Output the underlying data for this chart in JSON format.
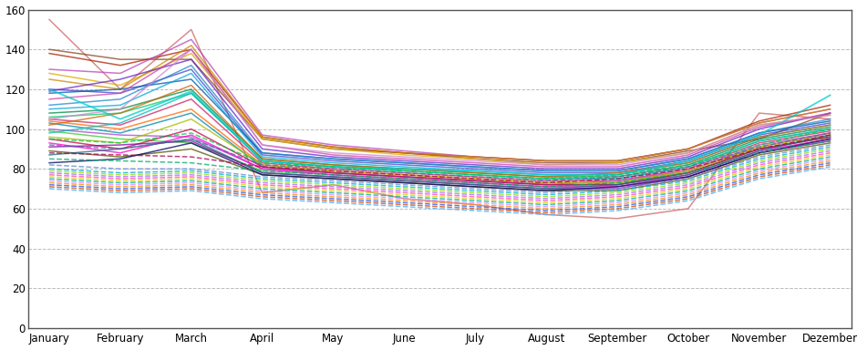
{
  "months": [
    "January",
    "February",
    "March",
    "April",
    "May",
    "June",
    "July",
    "August",
    "September",
    "October",
    "November",
    "Dezember"
  ],
  "ylim": [
    0,
    160
  ],
  "yticks": [
    0,
    20,
    40,
    60,
    80,
    100,
    120,
    140,
    160
  ],
  "background_color": "#ffffff",
  "grid_color": "#bbbbbb",
  "series": [
    {
      "values": [
        155,
        120,
        150,
        68,
        72,
        65,
        62,
        57,
        55,
        60,
        108,
        105
      ],
      "color": "#cc6666",
      "dash": "solid",
      "lw": 1.1
    },
    {
      "values": [
        140,
        135,
        135,
        95,
        90,
        88,
        85,
        83,
        83,
        89,
        95,
        108
      ],
      "color": "#884422",
      "dash": "solid",
      "lw": 1.1
    },
    {
      "values": [
        138,
        132,
        140,
        96,
        91,
        88,
        86,
        84,
        84,
        90,
        104,
        112
      ],
      "color": "#aa2200",
      "dash": "solid",
      "lw": 1.1
    },
    {
      "values": [
        130,
        128,
        145,
        97,
        92,
        89,
        86,
        84,
        84,
        90,
        103,
        110
      ],
      "color": "#bb44bb",
      "dash": "solid",
      "lw": 1.1
    },
    {
      "values": [
        128,
        122,
        138,
        95,
        90,
        87,
        85,
        82,
        83,
        88,
        102,
        107
      ],
      "color": "#ddaa00",
      "dash": "solid",
      "lw": 1.1
    },
    {
      "values": [
        125,
        120,
        142,
        96,
        91,
        88,
        86,
        84,
        84,
        90,
        103,
        110
      ],
      "color": "#cc8800",
      "dash": "solid",
      "lw": 1.1
    },
    {
      "values": [
        120,
        118,
        130,
        87,
        84,
        82,
        80,
        78,
        78,
        84,
        97,
        103
      ],
      "color": "#4444cc",
      "dash": "solid",
      "lw": 1.1
    },
    {
      "values": [
        119,
        125,
        135,
        90,
        86,
        84,
        82,
        80,
        80,
        86,
        100,
        108
      ],
      "color": "#6622cc",
      "dash": "solid",
      "lw": 1.1
    },
    {
      "values": [
        118,
        120,
        125,
        88,
        85,
        83,
        81,
        79,
        79,
        85,
        98,
        104
      ],
      "color": "#0055aa",
      "dash": "solid",
      "lw": 1.1
    },
    {
      "values": [
        115,
        118,
        140,
        92,
        87,
        85,
        83,
        81,
        81,
        87,
        101,
        108
      ],
      "color": "#cc44aa",
      "dash": "solid",
      "lw": 1.1
    },
    {
      "values": [
        112,
        115,
        132,
        88,
        85,
        83,
        81,
        79,
        79,
        85,
        98,
        105
      ],
      "color": "#2288cc",
      "dash": "solid",
      "lw": 1.1
    },
    {
      "values": [
        110,
        112,
        128,
        86,
        83,
        81,
        79,
        77,
        77,
        83,
        96,
        102
      ],
      "color": "#00aadd",
      "dash": "solid",
      "lw": 1.1
    },
    {
      "values": [
        108,
        110,
        120,
        85,
        82,
        80,
        78,
        76,
        76,
        82,
        95,
        101
      ],
      "color": "#008844",
      "dash": "solid",
      "lw": 1.1
    },
    {
      "values": [
        106,
        108,
        118,
        84,
        81,
        79,
        77,
        75,
        75,
        81,
        94,
        100
      ],
      "color": "#00cc66",
      "dash": "solid",
      "lw": 1.1
    },
    {
      "values": [
        105,
        102,
        115,
        83,
        80,
        78,
        76,
        74,
        74,
        80,
        93,
        99
      ],
      "color": "#cc2266",
      "dash": "solid",
      "lw": 1.1
    },
    {
      "values": [
        104,
        100,
        110,
        82,
        79,
        77,
        75,
        73,
        73,
        79,
        91,
        98
      ],
      "color": "#ff6600",
      "dash": "solid",
      "lw": 1.1
    },
    {
      "values": [
        103,
        98,
        108,
        81,
        78,
        76,
        74,
        72,
        72,
        78,
        90,
        96
      ],
      "color": "#0088aa",
      "dash": "solid",
      "lw": 1.1
    },
    {
      "values": [
        102,
        108,
        122,
        85,
        82,
        80,
        78,
        76,
        78,
        83,
        96,
        102
      ],
      "color": "#cc6600",
      "dash": "solid",
      "lw": 1.1
    },
    {
      "values": [
        100,
        97,
        96,
        80,
        78,
        76,
        74,
        72,
        74,
        79,
        92,
        98
      ],
      "color": "#aa44cc",
      "dash": "solid",
      "lw": 1.1
    },
    {
      "values": [
        99,
        95,
        93,
        79,
        77,
        75,
        73,
        71,
        73,
        78,
        90,
        96
      ],
      "color": "#33cc33",
      "dash": "solid",
      "lw": 1.1
    },
    {
      "values": [
        98,
        103,
        118,
        84,
        81,
        79,
        77,
        75,
        75,
        81,
        94,
        100
      ],
      "color": "#00bbbb",
      "dash": "solid",
      "lw": 1.1
    },
    {
      "values": [
        96,
        93,
        105,
        82,
        79,
        77,
        75,
        73,
        73,
        79,
        91,
        97
      ],
      "color": "#aabb00",
      "dash": "solid",
      "lw": 1.1
    },
    {
      "values": [
        95,
        90,
        100,
        81,
        78,
        76,
        74,
        72,
        72,
        78,
        90,
        96
      ],
      "color": "#cc0044",
      "dash": "solid",
      "lw": 1.1
    },
    {
      "values": [
        93,
        88,
        97,
        80,
        77,
        75,
        73,
        71,
        71,
        77,
        89,
        95
      ],
      "color": "#ff00cc",
      "dash": "solid",
      "lw": 1.1
    },
    {
      "values": [
        91,
        92,
        94,
        78,
        76,
        74,
        72,
        70,
        70,
        76,
        88,
        94
      ],
      "color": "#8800aa",
      "dash": "solid",
      "lw": 1.1
    },
    {
      "values": [
        89,
        86,
        90,
        77,
        75,
        73,
        71,
        69,
        69,
        75,
        87,
        93
      ],
      "color": "#555500",
      "dash": "solid",
      "lw": 1.1
    },
    {
      "values": [
        120,
        105,
        119,
        84,
        81,
        80,
        79,
        77,
        77,
        84,
        97,
        117
      ],
      "color": "#00cccc",
      "dash": "solid",
      "lw": 1.3
    },
    {
      "values": [
        105,
        110,
        140,
        92,
        88,
        86,
        84,
        82,
        82,
        88,
        102,
        107
      ],
      "color": "#cc88cc",
      "dash": "solid",
      "lw": 1.1
    },
    {
      "values": [
        87,
        90,
        95,
        78,
        76,
        74,
        72,
        70,
        72,
        77,
        89,
        97
      ],
      "color": "#226688",
      "dash": "solid",
      "lw": 1.1
    },
    {
      "values": [
        83,
        85,
        93,
        77,
        75,
        73,
        71,
        69,
        71,
        76,
        88,
        95
      ],
      "color": "#000066",
      "dash": "solid",
      "lw": 1.1
    },
    {
      "values": [
        82,
        80,
        80,
        76,
        74,
        72,
        70,
        68,
        70,
        75,
        86,
        92
      ],
      "color": "#6688cc",
      "dash": "dashed",
      "lw": 1.1
    },
    {
      "values": [
        80,
        78,
        79,
        75,
        73,
        71,
        69,
        67,
        69,
        74,
        85,
        91
      ],
      "color": "#00aacc",
      "dash": "dashed",
      "lw": 1.1
    },
    {
      "values": [
        79,
        77,
        78,
        74,
        72,
        70,
        68,
        66,
        68,
        73,
        84,
        90
      ],
      "color": "#88dd00",
      "dash": "dashed",
      "lw": 1.1
    },
    {
      "values": [
        78,
        76,
        77,
        73,
        71,
        69,
        67,
        65,
        67,
        72,
        83,
        89
      ],
      "color": "#aa66ff",
      "dash": "dashed",
      "lw": 1.1
    },
    {
      "values": [
        77,
        75,
        76,
        72,
        70,
        68,
        66,
        64,
        66,
        71,
        82,
        88
      ],
      "color": "#ff44aa",
      "dash": "dashed",
      "lw": 1.1
    },
    {
      "values": [
        76,
        74,
        75,
        71,
        69,
        67,
        65,
        63,
        65,
        70,
        81,
        87
      ],
      "color": "#ddcc00",
      "dash": "dashed",
      "lw": 1.1
    },
    {
      "values": [
        75,
        73,
        74,
        70,
        68,
        66,
        64,
        62,
        64,
        69,
        80,
        86
      ],
      "color": "#00aa88",
      "dash": "dashed",
      "lw": 1.1
    },
    {
      "values": [
        74,
        72,
        73,
        69,
        67,
        65,
        63,
        61,
        63,
        68,
        79,
        85
      ],
      "color": "#cc88ff",
      "dash": "dashed",
      "lw": 1.1
    },
    {
      "values": [
        73,
        71,
        72,
        68,
        66,
        64,
        62,
        60,
        62,
        67,
        78,
        84
      ],
      "color": "#ff8800",
      "dash": "dashed",
      "lw": 1.1
    },
    {
      "values": [
        72,
        70,
        71,
        67,
        65,
        63,
        61,
        59,
        61,
        66,
        77,
        83
      ],
      "color": "#2255dd",
      "dash": "dashed",
      "lw": 1.1
    },
    {
      "values": [
        71,
        69,
        70,
        66,
        64,
        62,
        60,
        58,
        60,
        65,
        76,
        82
      ],
      "color": "#cc4400",
      "dash": "dashed",
      "lw": 1.1
    },
    {
      "values": [
        70,
        68,
        69,
        65,
        63,
        61,
        59,
        57,
        59,
        64,
        75,
        81
      ],
      "color": "#44aaff",
      "dash": "dashed",
      "lw": 1.1
    },
    {
      "values": [
        85,
        84,
        83,
        79,
        77,
        75,
        73,
        71,
        73,
        78,
        88,
        94
      ],
      "color": "#00aa66",
      "dash": "dashed",
      "lw": 1.1
    },
    {
      "values": [
        88,
        87,
        86,
        81,
        79,
        77,
        75,
        73,
        75,
        80,
        90,
        97
      ],
      "color": "#aa0055",
      "dash": "dashed",
      "lw": 1.1
    },
    {
      "values": [
        92,
        90,
        95,
        82,
        80,
        78,
        76,
        74,
        76,
        81,
        91,
        98
      ],
      "color": "#5566aa",
      "dash": "dashed",
      "lw": 1.1
    },
    {
      "values": [
        95,
        93,
        98,
        83,
        81,
        79,
        77,
        75,
        77,
        82,
        92,
        100
      ],
      "color": "#00cc44",
      "dash": "dashed",
      "lw": 1.1
    }
  ]
}
